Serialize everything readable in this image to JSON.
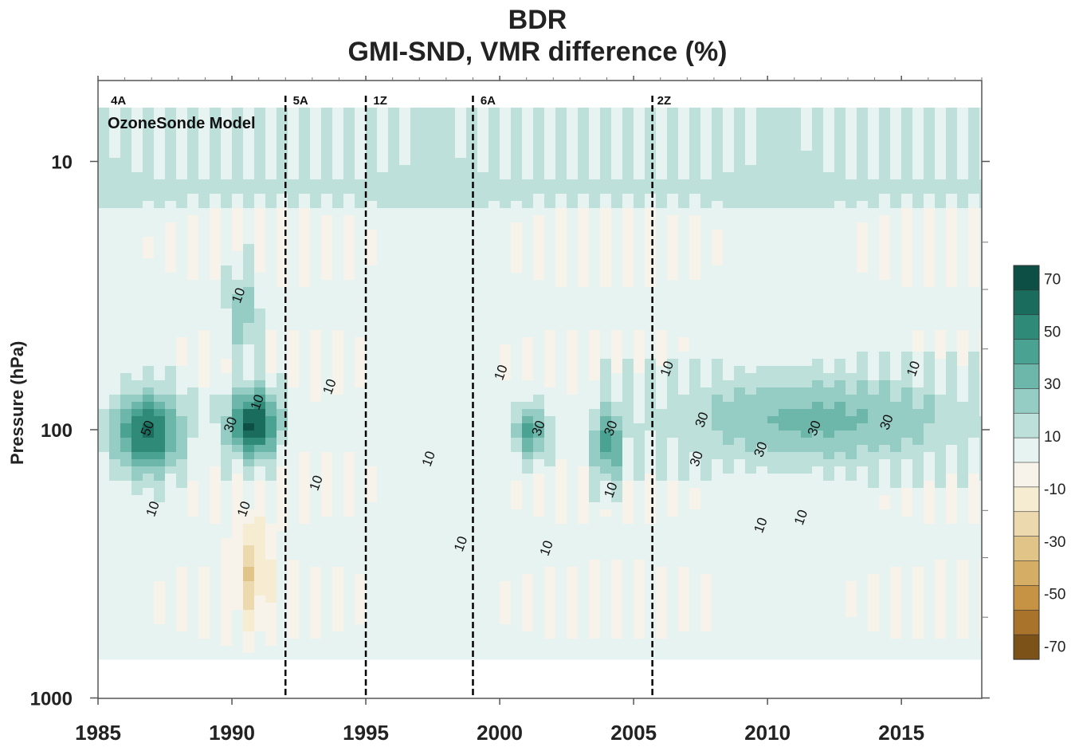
{
  "chart_data": {
    "type": "heatmap",
    "title": "BDR",
    "subtitle": "GMI-SND, VMR difference (%)",
    "xlabel": "",
    "ylabel": "Pressure (hPa)",
    "x_range": [
      1985,
      2018
    ],
    "x_ticks": [
      1985,
      1990,
      1995,
      2000,
      2005,
      2010,
      2015
    ],
    "y_scale": "log",
    "y_range_hPa": [
      6,
      1000
    ],
    "y_ticks": [
      10,
      100,
      1000
    ],
    "legend_text": "OzoneSonde Model",
    "grid": false,
    "colorbar": {
      "min": -70,
      "max": 70,
      "step": 10,
      "labels": [
        70,
        50,
        30,
        10,
        -10,
        -30,
        -50,
        -70
      ],
      "colors": {
        "75": "#0d4f44",
        "65": "#1a6d5d",
        "55": "#2f8a78",
        "45": "#4aa293",
        "35": "#6cb7aa",
        "25": "#95cdc4",
        "15": "#bde1da",
        "5": "#e6f3f0",
        "-5": "#f7f3ea",
        "-15": "#f5ecd2",
        "-25": "#ecd9ad",
        "-35": "#e1c487",
        "-45": "#d6ad64",
        "-55": "#c69243",
        "-65": "#a9732b",
        "-75": "#7c5218"
      }
    },
    "period_markers": [
      {
        "label": "4A",
        "year": 1985.3
      },
      {
        "label": "5A",
        "year": 1992.1
      },
      {
        "label": "1Z",
        "year": 1995.1
      },
      {
        "label": "6A",
        "year": 1999.1
      },
      {
        "label": "2Z",
        "year": 2005.7
      }
    ],
    "divider_years": [
      1992.0,
      1995.0,
      1999.0,
      2005.7
    ],
    "contour_label_values": [
      "10",
      "30",
      "50"
    ],
    "features": [
      {
        "year_from": 1985.5,
        "year_to": 1988.2,
        "p_from": 70,
        "p_to": 150,
        "peak_percent": 60
      },
      {
        "year_from": 1989.8,
        "year_to": 1991.8,
        "p_from": 70,
        "p_to": 130,
        "peak_percent": 70
      },
      {
        "year_from": 1989.8,
        "year_to": 1991.0,
        "p_from": 25,
        "p_to": 55,
        "peak_percent": 25
      },
      {
        "year_from": 1990.0,
        "year_to": 1991.5,
        "p_from": 200,
        "p_to": 550,
        "peak_percent": -30
      },
      {
        "year_from": 2000.5,
        "year_to": 2001.8,
        "p_from": 80,
        "p_to": 130,
        "peak_percent": 40
      },
      {
        "year_from": 2003.5,
        "year_to": 2004.6,
        "p_from": 80,
        "p_to": 160,
        "peak_percent": 40
      },
      {
        "year_from": 2005.8,
        "year_to": 2018,
        "p_from": 60,
        "p_to": 140,
        "peak_percent": 30
      }
    ]
  }
}
